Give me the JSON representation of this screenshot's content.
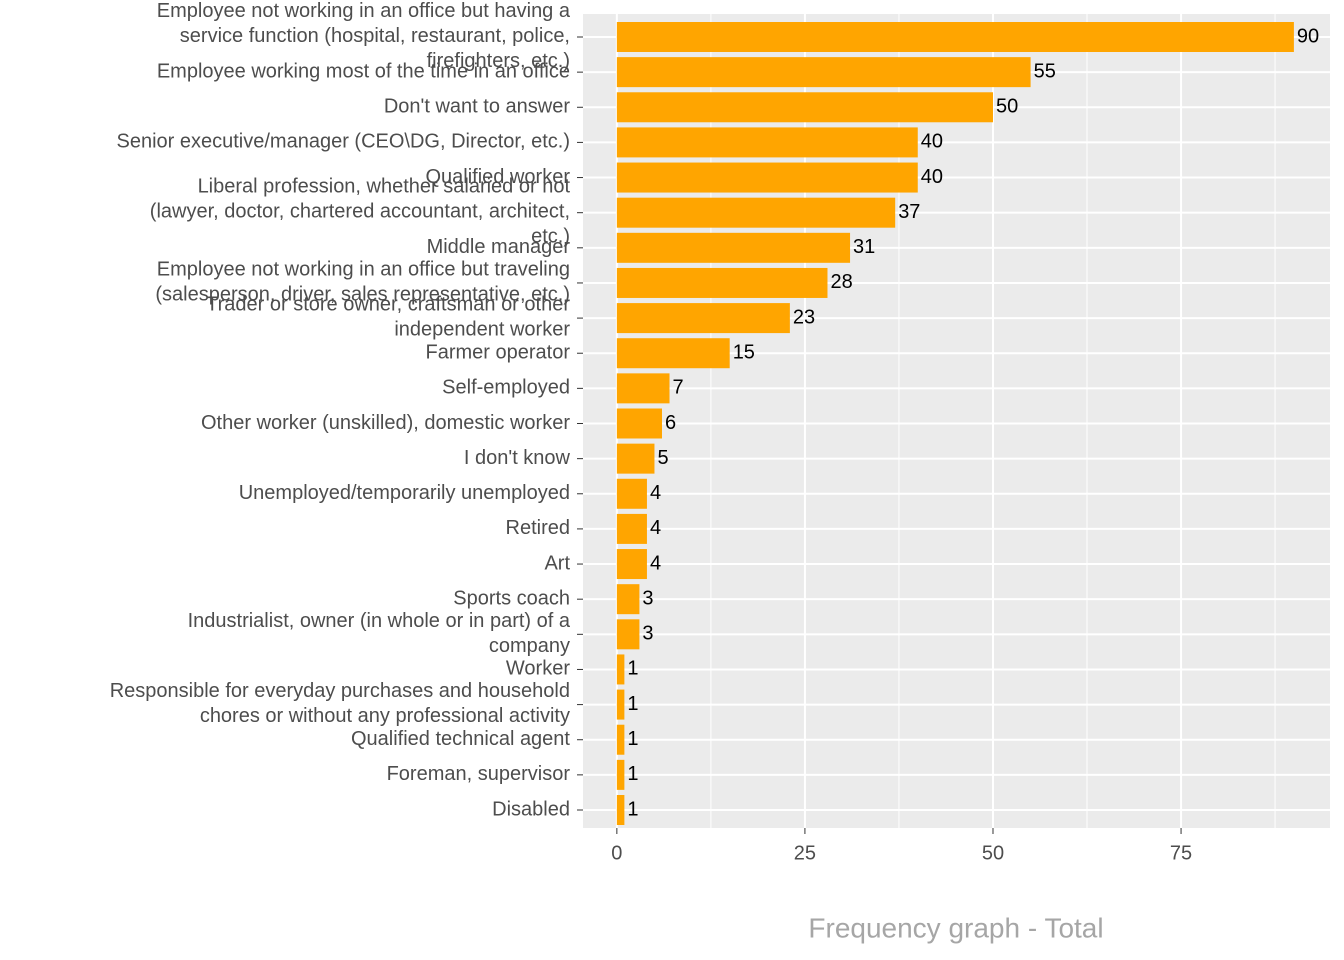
{
  "chart_data": {
    "type": "bar",
    "orientation": "horizontal",
    "title": "Frequency graph - Total",
    "categories": [
      "Employee not working in an office but having a\nservice function (hospital, restaurant, police,\nfirefighters, etc.)",
      "Employee working most of the time in an office",
      "Don't want to answer",
      "Senior executive/manager (CEO\\DG, Director, etc.)",
      "Qualified worker",
      "Liberal profession, whether salaried or not\n(lawyer, doctor, chartered accountant, architect,\netc.)",
      "Middle manager",
      "Employee not working in an office but traveling\n(salesperson, driver, sales representative, etc.)",
      "Trader or store owner, craftsman or other\nindependent worker",
      "Farmer operator",
      "Self-employed",
      "Other worker (unskilled), domestic worker",
      "I don't know",
      "Unemployed/temporarily unemployed",
      "Retired",
      "Art",
      "Sports coach",
      "Industrialist, owner (in whole or in part) of a\ncompany",
      "Worker",
      "Responsible for everyday purchases and household\nchores or without any professional activity",
      "Qualified technical agent",
      "Foreman, supervisor",
      "Disabled"
    ],
    "values": [
      90,
      55,
      50,
      40,
      40,
      37,
      31,
      28,
      23,
      15,
      7,
      6,
      5,
      4,
      4,
      4,
      3,
      3,
      1,
      1,
      1,
      1,
      1
    ],
    "color": "#ffa500",
    "xlim": [
      -4.5,
      94.8
    ],
    "xticks": [
      0,
      25,
      50,
      75
    ],
    "grid": true
  }
}
